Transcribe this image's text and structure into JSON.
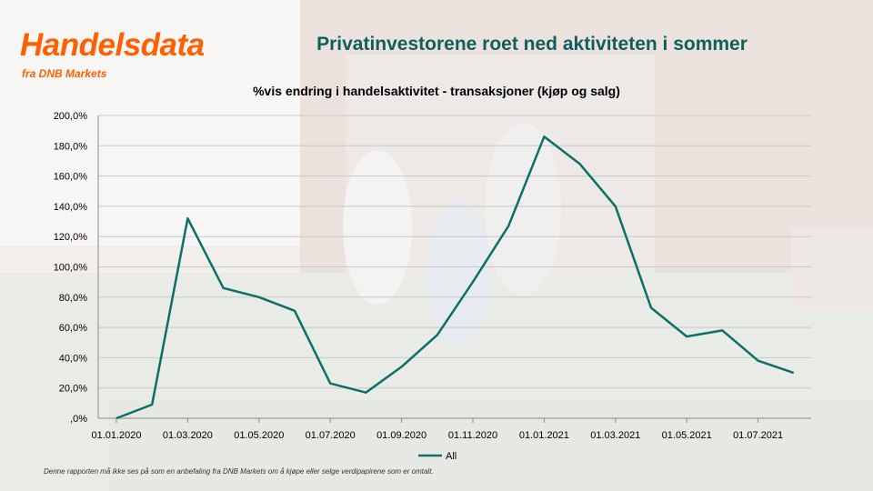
{
  "brand": {
    "name": "Handelsdata",
    "subtitle": "fra DNB Markets",
    "color": "#ff5f00"
  },
  "headline": "Privatinvestorene roet ned aktiviteten i sommer",
  "disclaimer": "Denne rapporten må ikke ses på som en anbefaling fra DNB Markets om å kjøpe eller selge verdipapirene som er omtalt.",
  "chart_data": {
    "type": "line",
    "title": "%vis endring i handelsaktivitet - transaksjoner (kjøp og salg)",
    "xlabel": "",
    "ylabel": "",
    "x": [
      "01.01.2020",
      "01.02.2020",
      "01.03.2020",
      "01.04.2020",
      "01.05.2020",
      "01.06.2020",
      "01.07.2020",
      "01.08.2020",
      "01.09.2020",
      "01.10.2020",
      "01.11.2020",
      "01.12.2020",
      "01.01.2021",
      "01.02.2021",
      "01.03.2021",
      "01.04.2021",
      "01.05.2021",
      "01.06.2021",
      "01.07.2021",
      "01.08.2021"
    ],
    "x_tick_labels": [
      "01.01.2020",
      "01.03.2020",
      "01.05.2020",
      "01.07.2020",
      "01.09.2020",
      "01.11.2020",
      "01.01.2021",
      "01.03.2021",
      "01.05.2021",
      "01.07.2021"
    ],
    "y_tick_labels": [
      ",0%",
      "20,0%",
      "40,0%",
      "60,0%",
      "80,0%",
      "100,0%",
      "120,0%",
      "140,0%",
      "160,0%",
      "180,0%",
      "200,0%"
    ],
    "ylim": [
      0,
      200
    ],
    "grid": true,
    "legend_position": "bottom",
    "series": [
      {
        "name": "All",
        "color": "#0d7068",
        "values": [
          0,
          9,
          132,
          86,
          80,
          71,
          23,
          17,
          34,
          55,
          90,
          127,
          186,
          168,
          140,
          73,
          54,
          58,
          38,
          30
        ]
      }
    ]
  }
}
